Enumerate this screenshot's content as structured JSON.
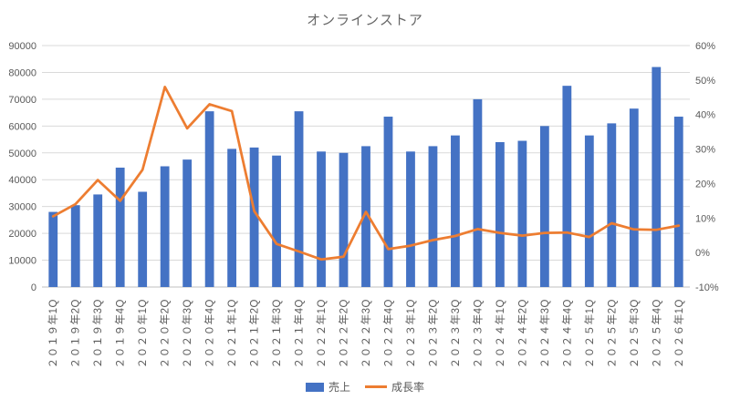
{
  "chart_data": {
    "type": "combo-bar-line",
    "title": "オンラインストア",
    "categories": [
      "２０１９年1Q",
      "２０１９年2Q",
      "２０１９年3Q",
      "２０１９年4Q",
      "２０２０年1Q",
      "２０２０年2Q",
      "２０２０年3Q",
      "２０２０年4Q",
      "２０２１年1Q",
      "２０２１年2Q",
      "２０２１年3Q",
      "２０２１年4Q",
      "２０２２年1Q",
      "２０２２年2Q",
      "２０２２年3Q",
      "２０２２年4Q",
      "２０２３年1Q",
      "２０２３年2Q",
      "２０２３年3Q",
      "２０２３年4Q",
      "２０２４年1Q",
      "２０２４年2Q",
      "２０２４年3Q",
      "２０２４年4Q",
      "２０２５年1Q",
      "２０２５年2Q",
      "２０２５年3Q",
      "２０２５年4Q",
      "２０２６年1Q"
    ],
    "series": [
      {
        "name": "売上",
        "type": "bar",
        "axis": "left",
        "color": "#4472C4",
        "values": [
          28000,
          30500,
          34500,
          44500,
          35500,
          45000,
          47500,
          65500,
          51500,
          52000,
          49000,
          65500,
          50500,
          50000,
          52500,
          63500,
          50500,
          52500,
          56500,
          70000,
          54000,
          54500,
          60000,
          75000,
          56500,
          61000,
          66500,
          82000,
          63500
        ]
      },
      {
        "name": "成長率",
        "type": "line",
        "axis": "right",
        "color": "#ED7D31",
        "values": [
          10.5,
          14,
          21,
          15,
          24,
          48,
          36,
          43,
          41,
          12,
          2.5,
          0.3,
          -2,
          -1.2,
          11.8,
          1,
          2,
          3.6,
          4.8,
          6.8,
          5.7,
          4.9,
          5.7,
          5.8,
          4.5,
          8.5,
          6.7,
          6.6,
          7.8
        ]
      }
    ],
    "left_axis": {
      "min": 0,
      "max": 90000,
      "step": 10000,
      "tick_labels": [
        "0",
        "10000",
        "20000",
        "30000",
        "40000",
        "50000",
        "60000",
        "70000",
        "80000",
        "90000"
      ]
    },
    "right_axis": {
      "min": -10,
      "max": 60,
      "step": 10,
      "tick_labels": [
        "-10%",
        "0%",
        "10%",
        "20%",
        "30%",
        "40%",
        "50%",
        "60%"
      ]
    },
    "grid": true,
    "legend_position": "bottom"
  },
  "colors": {
    "bar": "#4472C4",
    "line": "#ED7D31",
    "gridline": "#D9D9D9",
    "axis_line": "#BFBFBF",
    "tick_text": "#595959",
    "title_text": "#666666"
  }
}
